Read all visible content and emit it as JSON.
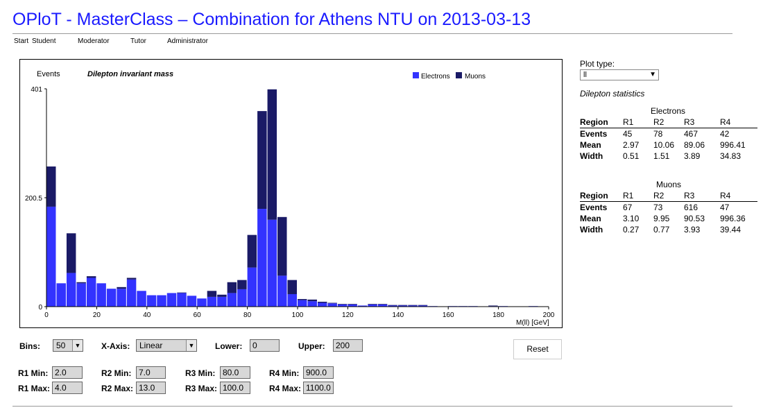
{
  "page": {
    "title": "OPloT - MasterClass – Combination for Athens NTU on 2013-03-13"
  },
  "nav": [
    "Start",
    "Student",
    "Moderator",
    "Tutor",
    "Administrator"
  ],
  "side": {
    "plot_type_label": "Plot type:",
    "plot_type_value": "ll",
    "stats_title": "Dilepton statistics",
    "tables": [
      {
        "title": "Electrons",
        "headers": [
          "Region",
          "R1",
          "R2",
          "R3",
          "R4"
        ],
        "rows": [
          [
            "Events",
            "45",
            "78",
            "467",
            "42"
          ],
          [
            "Mean",
            "2.97",
            "10.06",
            "89.06",
            "996.41"
          ],
          [
            "Width",
            "0.51",
            "1.51",
            "3.89",
            "34.83"
          ]
        ]
      },
      {
        "title": "Muons",
        "headers": [
          "Region",
          "R1",
          "R2",
          "R3",
          "R4"
        ],
        "rows": [
          [
            "Events",
            "67",
            "73",
            "616",
            "47"
          ],
          [
            "Mean",
            "3.10",
            "9.95",
            "90.53",
            "996.36"
          ],
          [
            "Width",
            "0.27",
            "0.77",
            "3.93",
            "39.44"
          ]
        ]
      }
    ]
  },
  "controls": {
    "bins_label": "Bins:",
    "bins_value": "50",
    "xaxis_label": "X-Axis:",
    "xaxis_value": "Linear",
    "lower_label": "Lower:",
    "lower_value": "0",
    "upper_label": "Upper:",
    "upper_value": "200",
    "reset_label": "Reset",
    "r1_min_label": "R1 Min:",
    "r1_min": "2.0",
    "r1_max_label": "R1 Max:",
    "r1_max": "4.0",
    "r2_min_label": "R2 Min:",
    "r2_min": "7.0",
    "r2_max_label": "R2 Max:",
    "r2_max": "13.0",
    "r3_min_label": "R3 Min:",
    "r3_min": "80.0",
    "r3_max_label": "R3 Max:",
    "r3_max": "100.0",
    "r4_min_label": "R4 Min:",
    "r4_min": "900.0",
    "r4_max_label": "R4 Max:",
    "r4_max": "1100.0"
  },
  "colors": {
    "electrons": "#3333ff",
    "muons": "#1a1a66",
    "title": "#1a1aff"
  },
  "chart_data": {
    "type": "bar",
    "stacked": true,
    "title": "Dilepton invariant mass",
    "ylabel": "Events",
    "xlabel": "M(ll) [GeV]",
    "xlim": [
      0,
      200
    ],
    "ylim": [
      0,
      401
    ],
    "y_ticks": [
      "0",
      "200.5",
      "401"
    ],
    "x_ticks": [
      "0",
      "20",
      "40",
      "60",
      "80",
      "100",
      "120",
      "140",
      "160",
      "180",
      "200"
    ],
    "legend_position": "top-right",
    "bin_width": 4,
    "x": [
      2,
      6,
      10,
      14,
      18,
      22,
      26,
      30,
      34,
      38,
      42,
      46,
      50,
      54,
      58,
      62,
      66,
      70,
      74,
      78,
      82,
      86,
      90,
      94,
      98,
      102,
      106,
      110,
      114,
      118,
      122,
      126,
      130,
      134,
      138,
      142,
      146,
      150,
      154,
      158,
      162,
      166,
      170,
      174,
      178,
      182,
      186,
      190,
      194,
      198
    ],
    "series": [
      {
        "name": "Electrons",
        "values": [
          184,
          43,
          62,
          43,
          53,
          43,
          33,
          33,
          50,
          29,
          21,
          21,
          25,
          25,
          20,
          15,
          18,
          18,
          25,
          32,
          72,
          180,
          160,
          57,
          23,
          12,
          10,
          7,
          6,
          4,
          4,
          2,
          4,
          4,
          2,
          2,
          2,
          2,
          1,
          0,
          1,
          1,
          1,
          0,
          1,
          1,
          0,
          0,
          1,
          0
        ]
      },
      {
        "name": "Muons",
        "values": [
          74,
          0,
          73,
          2,
          3,
          0,
          0,
          3,
          3,
          0,
          0,
          0,
          0,
          1,
          0,
          0,
          11,
          4,
          20,
          17,
          60,
          180,
          240,
          108,
          26,
          2,
          3,
          2,
          1,
          1,
          1,
          0,
          1,
          1,
          1,
          1,
          1,
          1,
          0,
          0,
          0,
          0,
          0,
          0,
          1,
          0,
          0,
          0,
          0,
          0
        ]
      }
    ]
  }
}
